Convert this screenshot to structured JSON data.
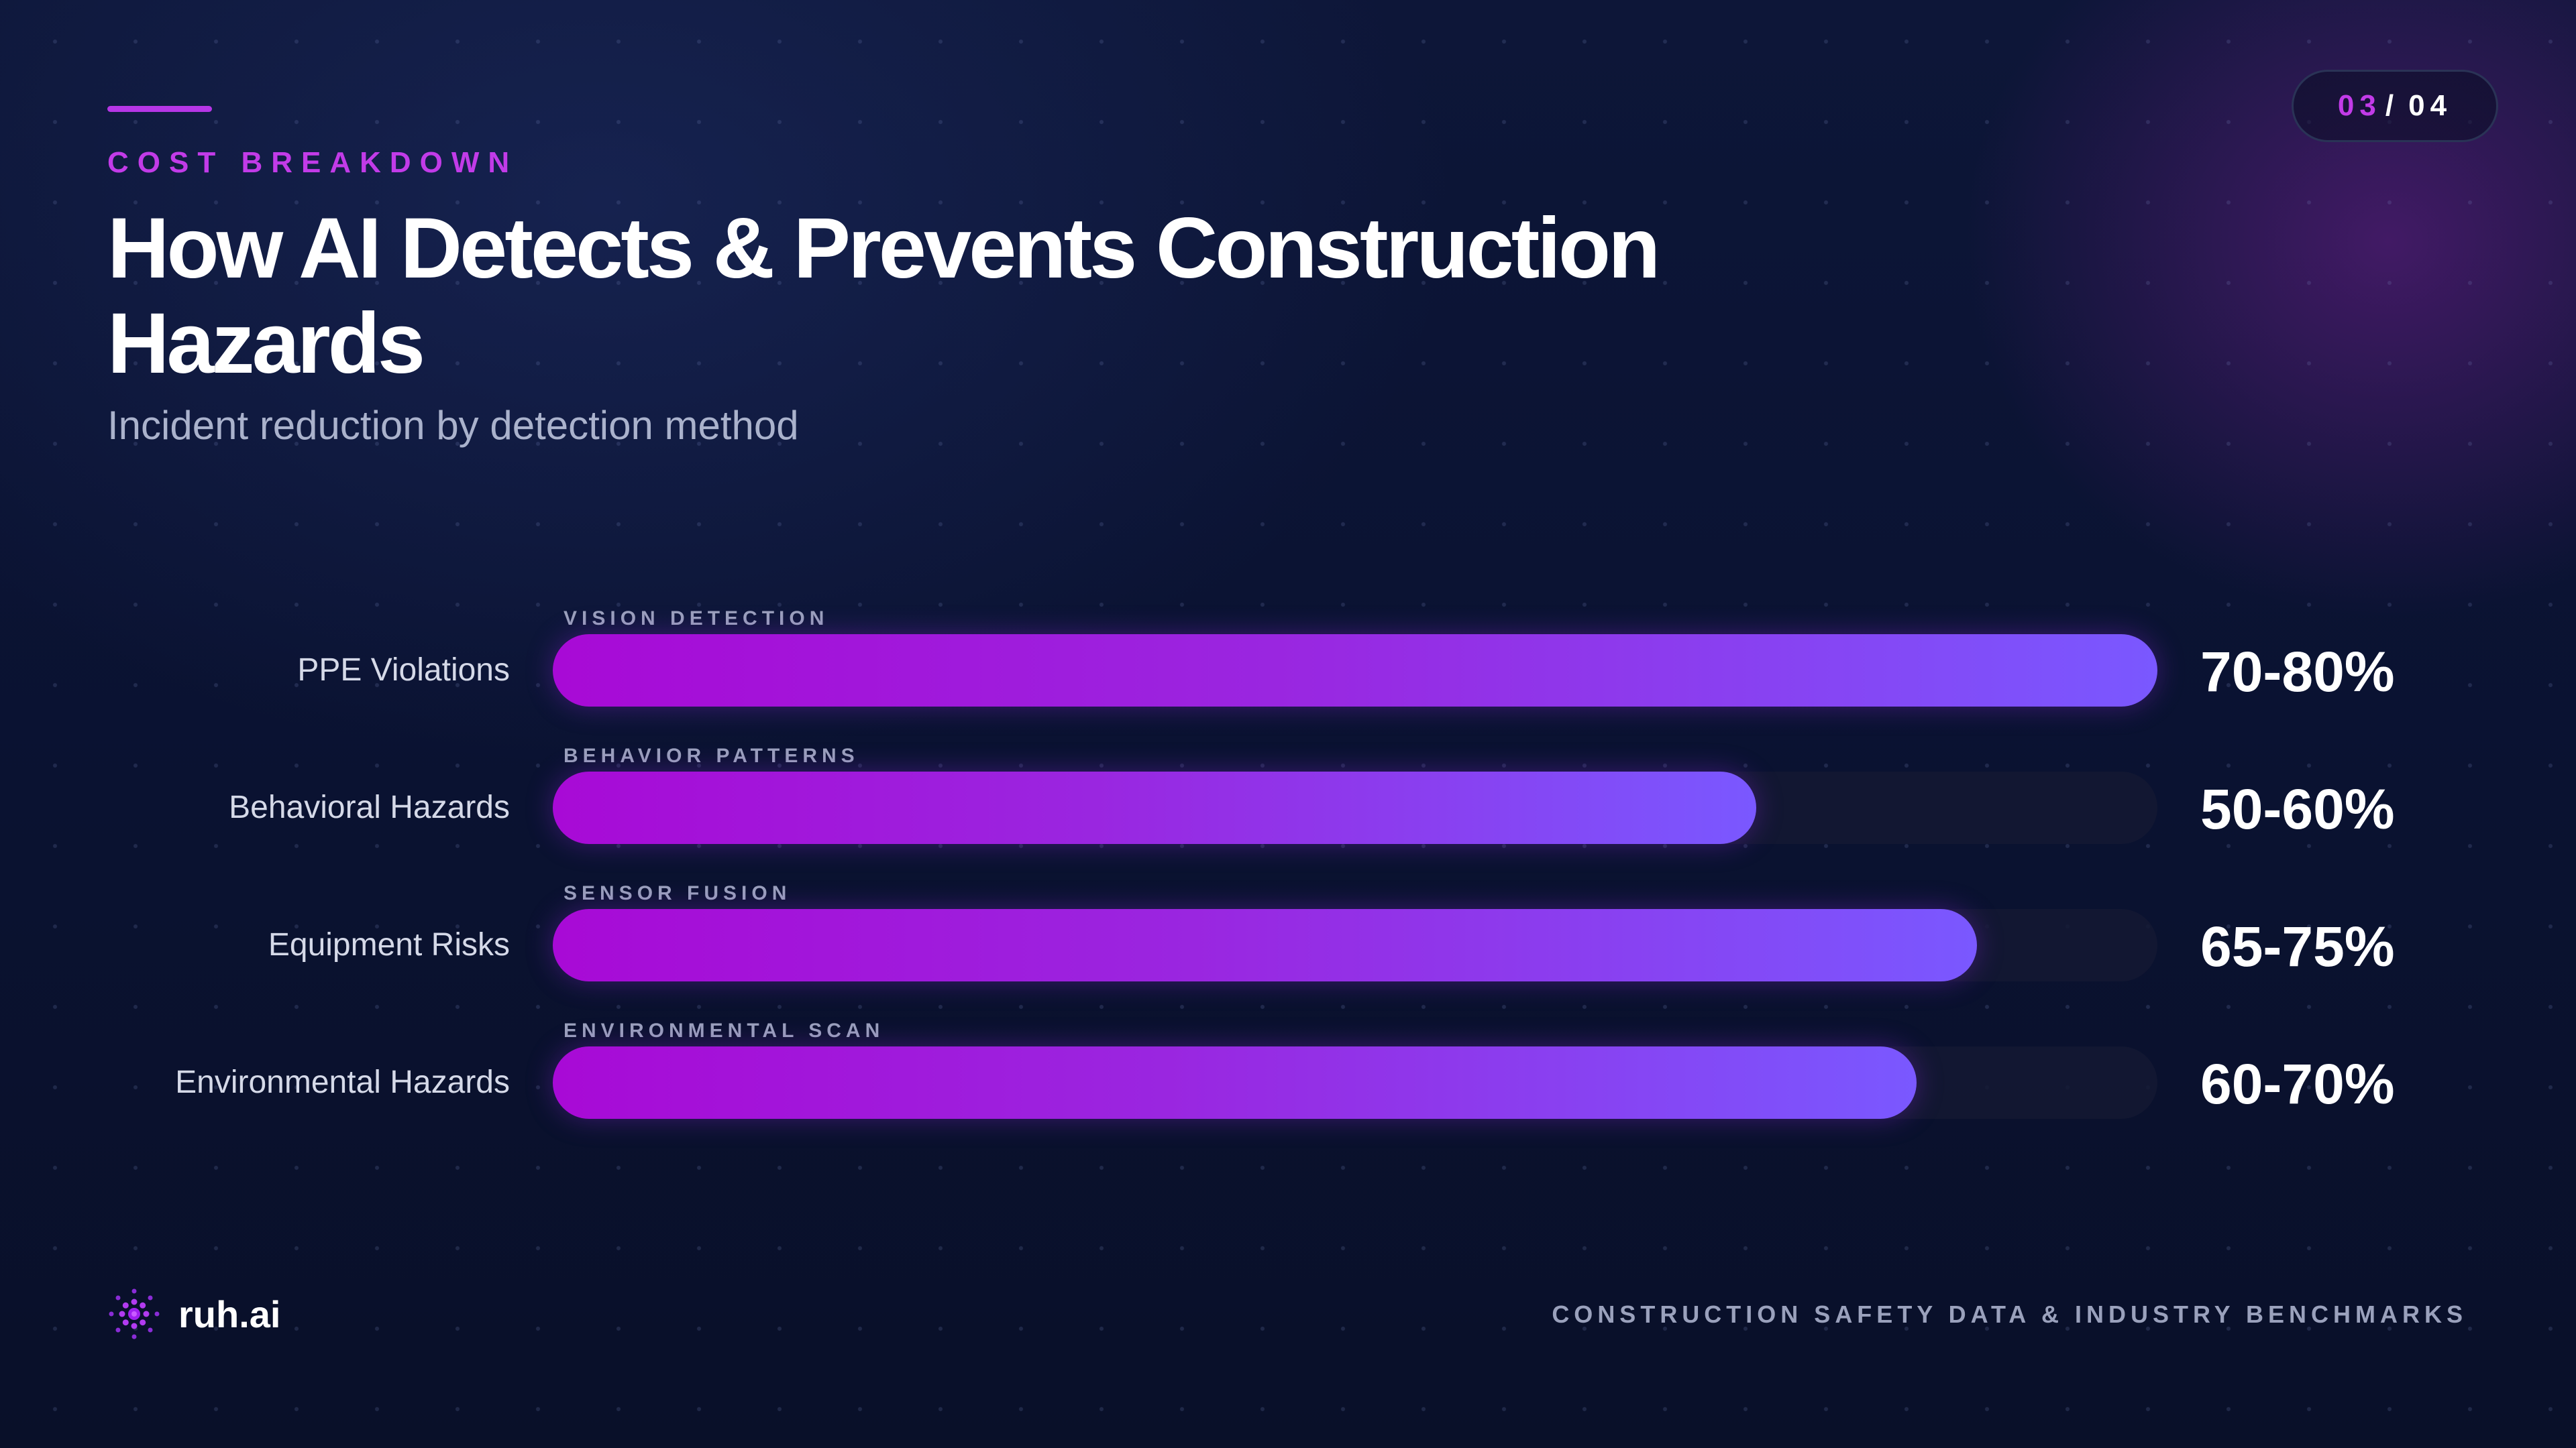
{
  "header": {
    "eyebrow": "COST BREAKDOWN",
    "title": "How AI Detects & Prevents Construction Hazards",
    "subtitle": "Incident reduction by detection method"
  },
  "page": {
    "current": "03",
    "separator": "/",
    "total": "04"
  },
  "chart_data": {
    "type": "bar",
    "orientation": "horizontal",
    "title": "How AI Detects & Prevents Construction Hazards",
    "subtitle": "Incident reduction by detection method",
    "categories": [
      "PPE Violations",
      "Behavioral Hazards",
      "Equipment Risks",
      "Environmental Hazards"
    ],
    "tags": [
      "VISION DETECTION",
      "BEHAVIOR PATTERNS",
      "SENSOR FUSION",
      "ENVIRONMENTAL SCAN"
    ],
    "value_labels": [
      "70-80%",
      "50-60%",
      "65-75%",
      "60-70%"
    ],
    "values": [
      80,
      60,
      71,
      68
    ],
    "xlim": [
      0,
      80
    ],
    "grid": false,
    "legend": "none"
  },
  "footer": {
    "brand": "ruh.ai",
    "source": "CONSTRUCTION SAFETY DATA & INDUSTRY BENCHMARKS"
  },
  "colors": {
    "accent": "#c23be8",
    "bar_start": "#a80ad6",
    "bar_end": "#7a58ff",
    "background": "#0b1433"
  },
  "icons": {
    "logo": "dotted-circle-logo-icon"
  }
}
